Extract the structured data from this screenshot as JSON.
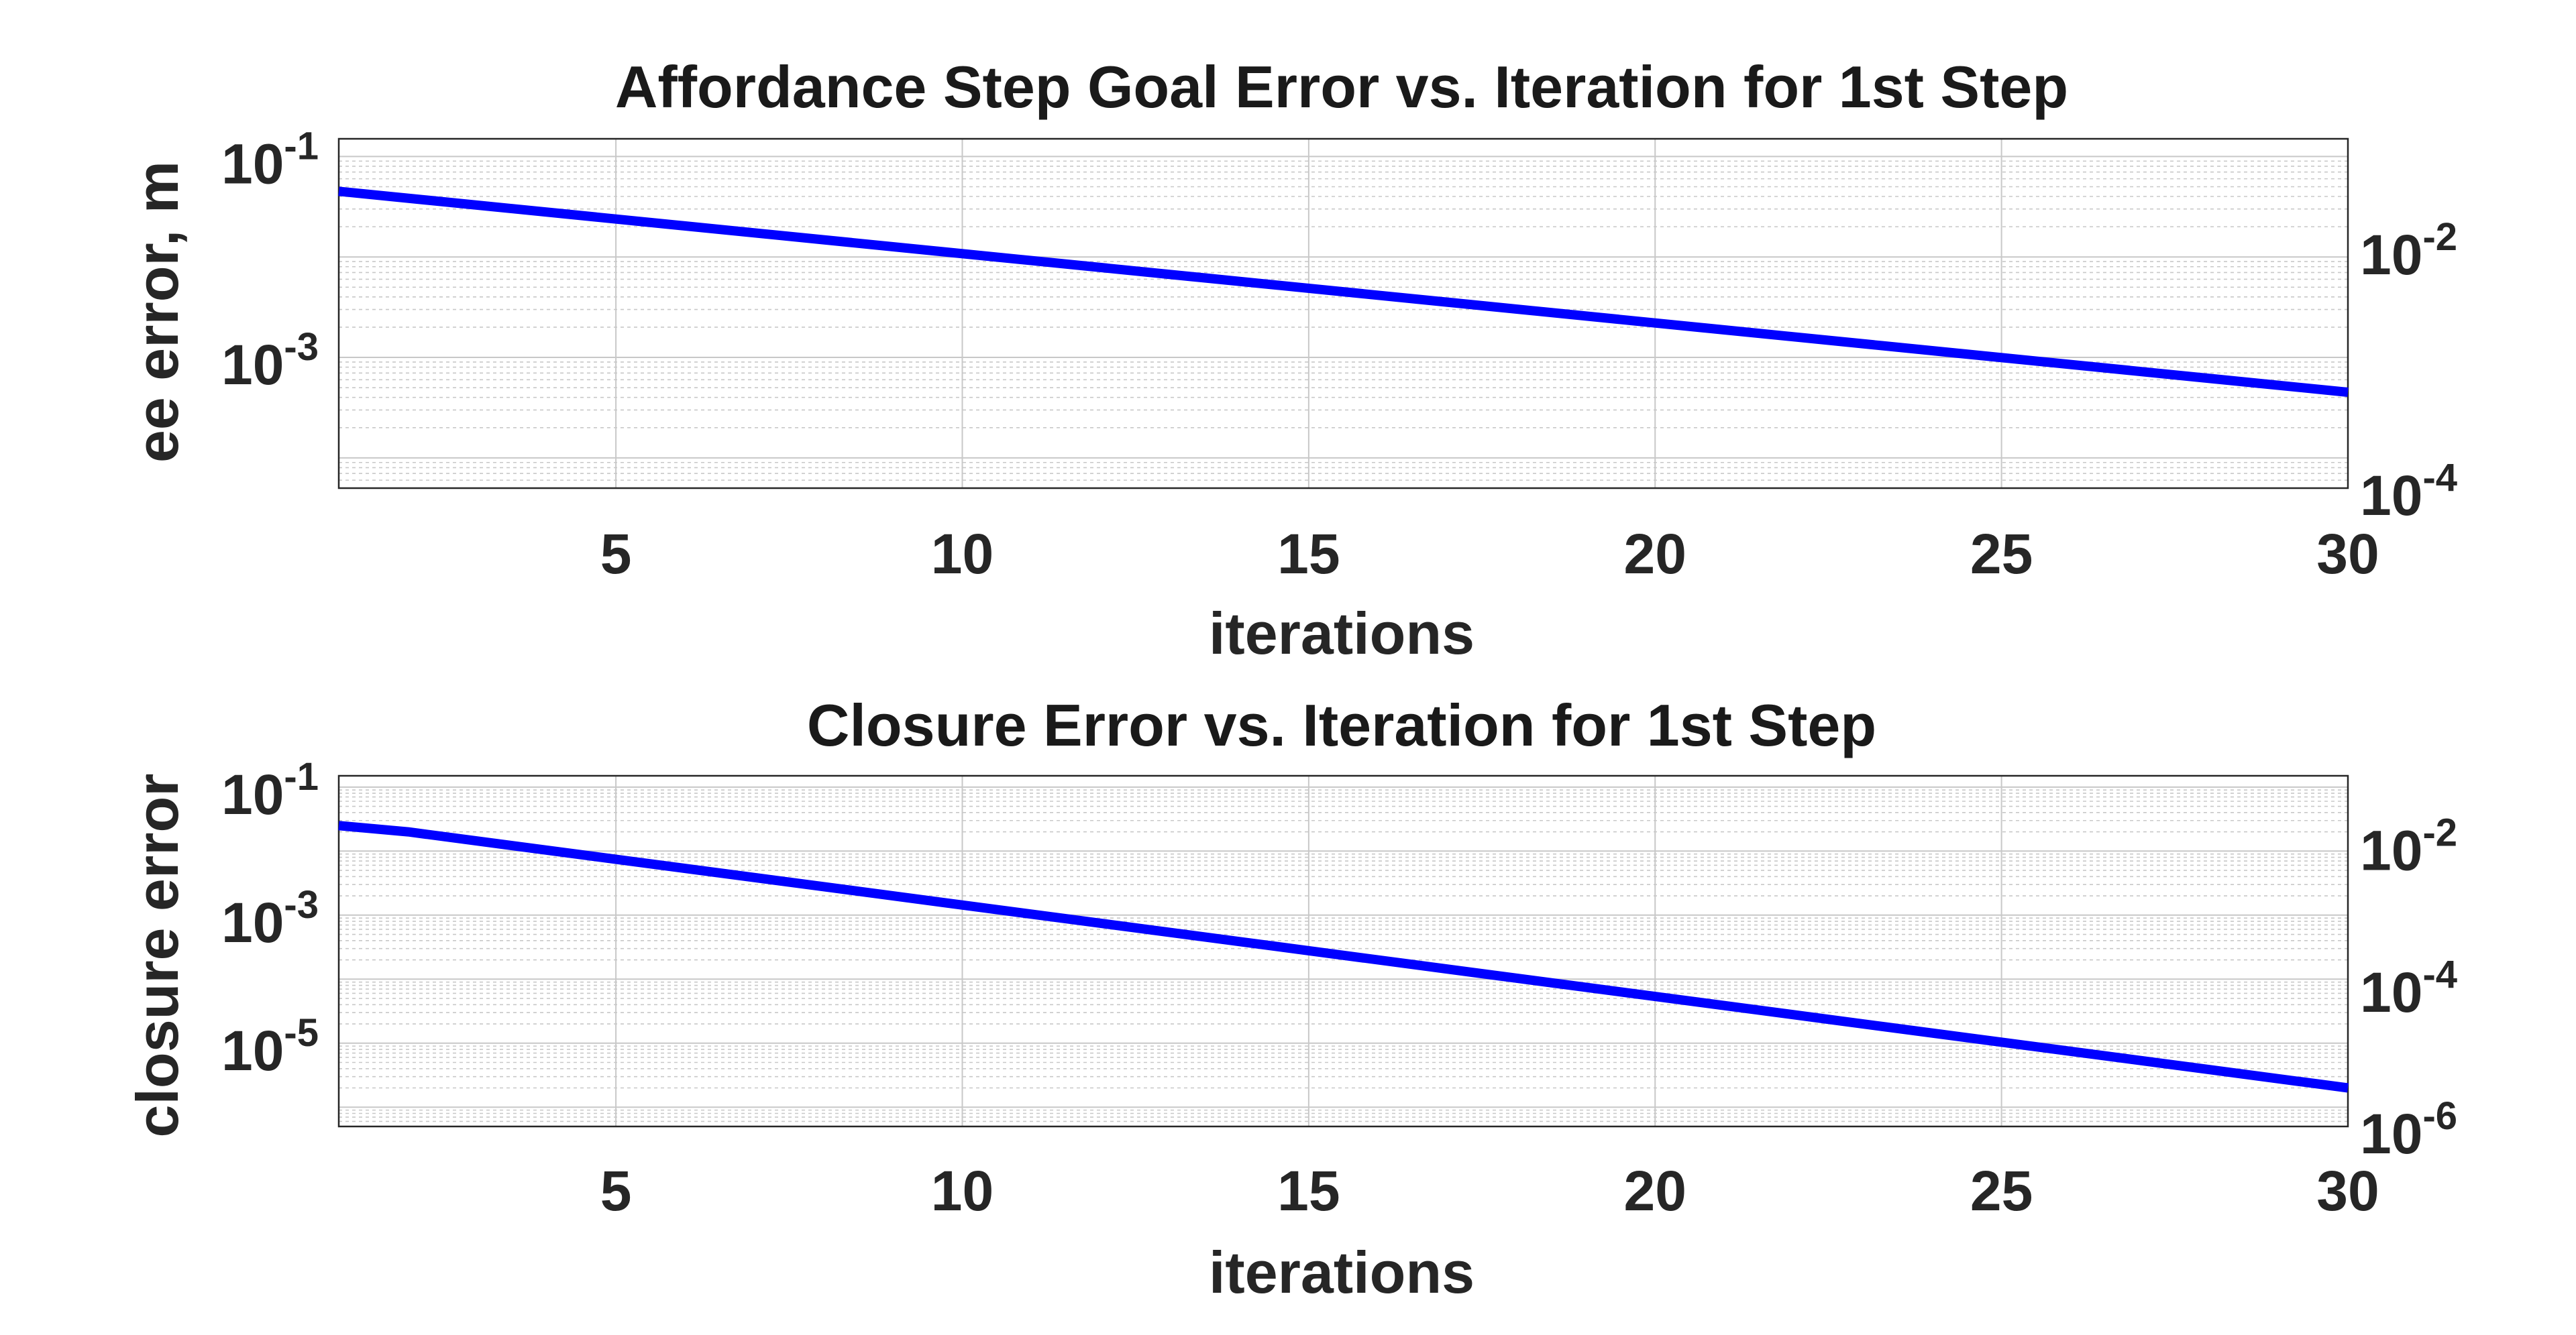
{
  "chart_data": [
    {
      "type": "line",
      "title": "Affordance Step Goal Error vs. Iteration for 1st Step",
      "xlabel": "iterations",
      "ylabel": "ee error, m",
      "xlim": [
        1,
        30
      ],
      "xticks": [
        5,
        10,
        15,
        20,
        25,
        30
      ],
      "ylim_left": [
        5e-05,
        0.15
      ],
      "yticks_left": [
        {
          "base": "10",
          "exp": "-1",
          "value": 0.1
        },
        {
          "base": "10",
          "exp": "-3",
          "value": 0.001
        }
      ],
      "ylim_right": [
        0.0001,
        0.08
      ],
      "yticks_right": [
        {
          "base": "10",
          "exp": "-2",
          "value": 0.01
        },
        {
          "base": "10",
          "exp": "-4",
          "value": 0.0001
        }
      ],
      "yscale": "log",
      "grid": true,
      "line_color": "#0000ff",
      "series": [
        {
          "x": [
            1,
            30
          ],
          "y": [
            0.045,
            0.00045
          ]
        }
      ]
    },
    {
      "type": "line",
      "title": "Closure Error vs. Iteration for 1st Step",
      "xlabel": "iterations",
      "ylabel": "closure error",
      "xlim": [
        1,
        30
      ],
      "xticks": [
        5,
        10,
        15,
        20,
        25,
        30
      ],
      "ylim_left": [
        5e-07,
        0.15
      ],
      "yticks_left": [
        {
          "base": "10",
          "exp": "-1",
          "value": 0.1
        },
        {
          "base": "10",
          "exp": "-3",
          "value": 0.001
        },
        {
          "base": "10",
          "exp": "-5",
          "value": 1e-05
        }
      ],
      "ylim_right": [
        1e-06,
        0.09
      ],
      "yticks_right": [
        {
          "base": "10",
          "exp": "-2",
          "value": 0.01
        },
        {
          "base": "10",
          "exp": "-4",
          "value": 0.0001
        },
        {
          "base": "10",
          "exp": "-6",
          "value": 1e-06
        }
      ],
      "yscale": "log",
      "grid": true,
      "line_color": "#0000ff",
      "series": [
        {
          "x": [
            1,
            2,
            30
          ],
          "y": [
            0.025,
            0.02,
            2e-06
          ]
        }
      ]
    }
  ]
}
